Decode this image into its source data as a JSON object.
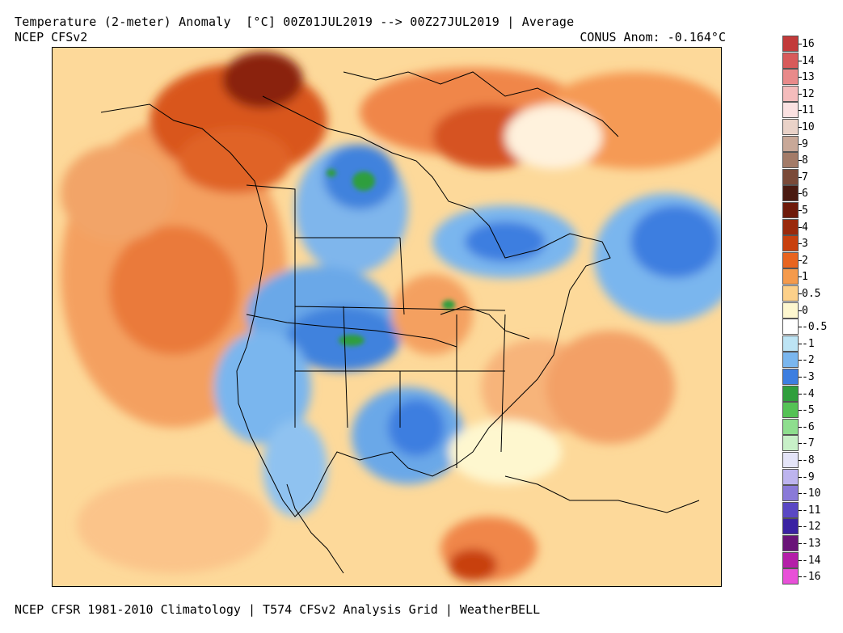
{
  "header": {
    "title": "Temperature (2-meter) Anomaly  [°C] 00Z01JUL2019 --> 00Z27JUL2019 | Average",
    "subtitle": "NCEP CFSv2",
    "conus_anom": "CONUS Anom: -0.164°C"
  },
  "footer": {
    "text": "NCEP CFSR 1981-2010 Climatology | T574 CFSv2 Analysis Grid | WeatherBELL"
  },
  "legend": {
    "labels": [
      "16",
      "14",
      "13",
      "12",
      "11",
      "10",
      "9",
      "8",
      "7",
      "6",
      "5",
      "4",
      "3",
      "2",
      "1",
      "0.5",
      "0",
      "-0.5",
      "-1",
      "-2",
      "-3",
      "-4",
      "-5",
      "-6",
      "-7",
      "-8",
      "-9",
      "-10",
      "-11",
      "-12",
      "-13",
      "-14",
      "-16"
    ],
    "colors": [
      "#c23a3a",
      "#d85a5a",
      "#e88a8a",
      "#f4bcbc",
      "#fbe1e1",
      "#e9d2c8",
      "#c8a898",
      "#a37b68",
      "#7a4a38",
      "#4a1a10",
      "#6e1a0a",
      "#9a2a0c",
      "#c8400e",
      "#e8641f",
      "#f49a4c",
      "#fcd08a",
      "#fef7cf",
      "#ffffff",
      "#bde4f4",
      "#7ab6ee",
      "#3d7ee0",
      "#2f9e3c",
      "#55c255",
      "#8ede8e",
      "#c8f0c8",
      "#e4e4f8",
      "#bdb4ee",
      "#8a7ad8",
      "#5a48c4",
      "#3a22a2",
      "#6a1478",
      "#b41ea8",
      "#e850d8"
    ]
  },
  "map": {
    "description_colors": {
      "warm_strong": "#c8400e",
      "warm": "#f49a4c",
      "warm_light": "#fcd08a",
      "neutral": "#fef7cf",
      "cool": "#7ab6ee",
      "cool_strong": "#3d7ee0",
      "cold_green": "#2f9e3c",
      "dark_red": "#6e1a0a"
    }
  }
}
